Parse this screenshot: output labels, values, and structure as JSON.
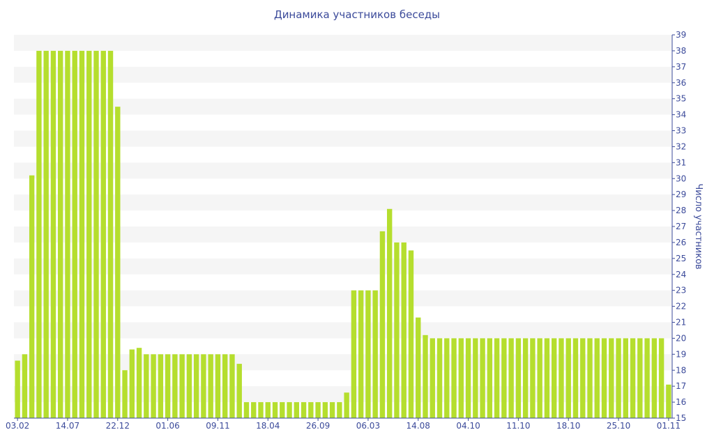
{
  "chart_data": {
    "type": "bar",
    "title": "Динамика участников беседы",
    "xlabel": "",
    "ylabel": "Число участников",
    "ylim": [
      15,
      39
    ],
    "yticks": [
      15,
      16,
      17,
      18,
      19,
      20,
      21,
      22,
      23,
      24,
      25,
      26,
      27,
      28,
      29,
      30,
      31,
      32,
      33,
      34,
      35,
      36,
      37,
      38,
      39
    ],
    "grid": "horizontal bands",
    "y_axis_position": "right",
    "x_tick_labels": [
      {
        "index": 0,
        "label": "03.02"
      },
      {
        "index": 7,
        "label": "14.07"
      },
      {
        "index": 14,
        "label": "22.12"
      },
      {
        "index": 21,
        "label": "01.06"
      },
      {
        "index": 28,
        "label": "09.11"
      },
      {
        "index": 35,
        "label": "18.04"
      },
      {
        "index": 42,
        "label": "26.09"
      },
      {
        "index": 49,
        "label": "06.03"
      },
      {
        "index": 56,
        "label": "14.08"
      },
      {
        "index": 63,
        "label": "04.10"
      },
      {
        "index": 70,
        "label": "11.10"
      },
      {
        "index": 77,
        "label": "18.10"
      },
      {
        "index": 84,
        "label": "25.10"
      },
      {
        "index": 91,
        "label": "01.11"
      }
    ],
    "values": [
      18.6,
      19.0,
      30.2,
      38,
      38,
      38,
      38,
      38,
      38,
      38,
      38,
      38,
      38,
      38,
      34.5,
      18.0,
      19.3,
      19.4,
      19,
      19,
      19,
      19,
      19,
      19,
      19,
      19,
      19,
      19,
      19,
      19,
      19,
      18.4,
      16,
      16,
      16,
      16,
      16,
      16,
      16,
      16,
      16,
      16,
      16,
      16,
      16,
      16,
      16.6,
      23,
      23,
      23,
      23,
      26.7,
      28.1,
      26,
      26,
      25.5,
      21.3,
      20.2,
      20,
      20,
      20,
      20,
      20,
      20,
      20,
      20,
      20,
      20,
      20,
      20,
      20,
      20,
      20,
      20,
      20,
      20,
      20,
      20,
      20,
      20,
      20,
      20,
      20,
      20,
      20,
      20,
      20,
      20,
      20,
      20,
      20,
      17.1
    ],
    "bar_color": "#b5de2e",
    "band_color": "#f5f5f5",
    "text_color": "#3b4a9a"
  }
}
